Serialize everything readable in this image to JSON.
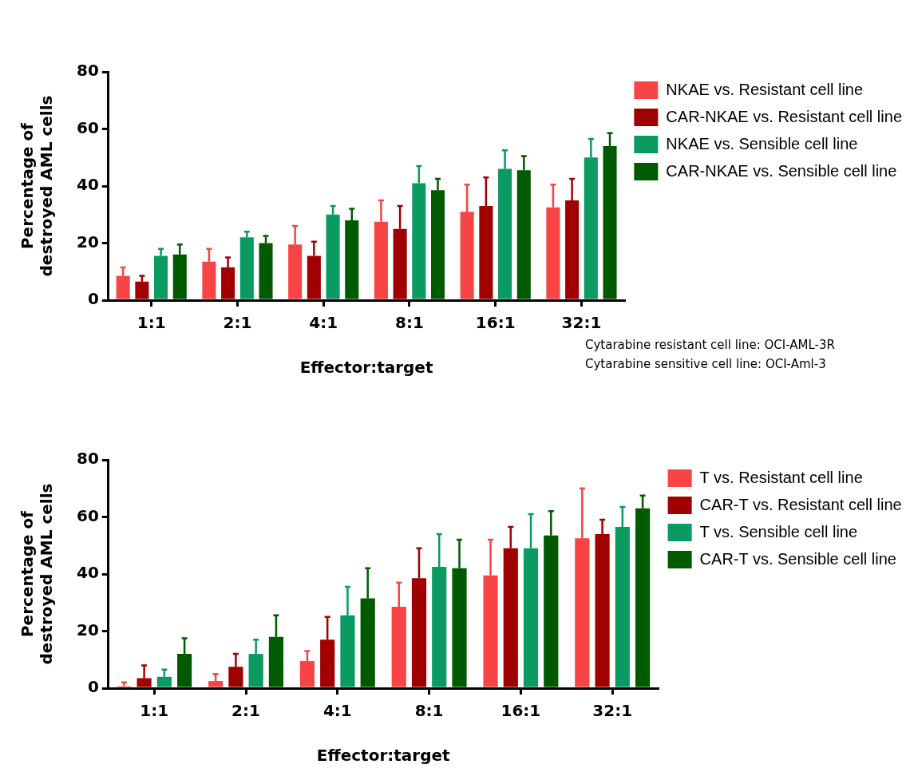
{
  "chart_data": [
    {
      "type": "bar",
      "xlabel": "Effector:target",
      "ylabel": "Percentage of destroyed AML cells",
      "categories": [
        "1:1",
        "2:1",
        "4:1",
        "8:1",
        "16:1",
        "32:1"
      ],
      "ylim": [
        0,
        80
      ],
      "yticks": [
        0,
        20,
        40,
        60,
        80
      ],
      "grid": false,
      "legend": "right",
      "annotations": [
        "Cytarabine resistant cell line: OCI-AML-3R",
        "Cytarabine sensitive cell line: OCI-Aml-3"
      ],
      "series": [
        {
          "name": "NKAE vs. Resistant cell line",
          "color": "#f84444",
          "values": [
            8.5,
            13.5,
            19.5,
            27.5,
            31,
            32.5
          ],
          "errors": [
            [
              8.5,
              11.5
            ],
            [
              13.5,
              18
            ],
            [
              19.5,
              26
            ],
            [
              27.5,
              35
            ],
            [
              31,
              40.5
            ],
            [
              32.5,
              40.5
            ]
          ]
        },
        {
          "name": "CAR-NKAE vs. Resistant cell line",
          "color": "#a00000",
          "values": [
            6.5,
            11.5,
            15.5,
            25,
            33,
            35
          ],
          "errors": [
            [
              6.5,
              8.5
            ],
            [
              11.5,
              15
            ],
            [
              15.5,
              20.5
            ],
            [
              25,
              33
            ],
            [
              33,
              43
            ],
            [
              35,
              42.5
            ]
          ]
        },
        {
          "name": "NKAE vs. Sensible cell line",
          "color": "#0a9a62",
          "values": [
            15.5,
            22,
            30,
            41,
            46,
            50
          ],
          "errors": [
            [
              15.5,
              18
            ],
            [
              22,
              24
            ],
            [
              30,
              33
            ],
            [
              41,
              47
            ],
            [
              46,
              52.5
            ],
            [
              50,
              56.5
            ]
          ]
        },
        {
          "name": "CAR-NKAE vs. Sensible cell line",
          "color": "#005a00",
          "values": [
            16,
            20,
            28,
            38.5,
            45.5,
            54
          ],
          "errors": [
            [
              16,
              19.5
            ],
            [
              20,
              22.5
            ],
            [
              28,
              32
            ],
            [
              38.5,
              42.5
            ],
            [
              45.5,
              50.5
            ],
            [
              54,
              58.5
            ]
          ]
        }
      ]
    },
    {
      "type": "bar",
      "xlabel": "Effector:target",
      "ylabel": "Percentage of destroyed AML cells",
      "categories": [
        "1:1",
        "2:1",
        "4:1",
        "8:1",
        "16:1",
        "32:1"
      ],
      "ylim": [
        0,
        80
      ],
      "yticks": [
        0,
        20,
        40,
        60,
        80
      ],
      "grid": false,
      "legend": "right",
      "series": [
        {
          "name": "T vs. Resistant cell line",
          "color": "#f84444",
          "values": [
            0.7,
            2.5,
            9.5,
            28.5,
            39.5,
            52.5
          ],
          "errors": [
            [
              0.7,
              2
            ],
            [
              2.5,
              5
            ],
            [
              9.5,
              13
            ],
            [
              28.5,
              37
            ],
            [
              39.5,
              52
            ],
            [
              52.5,
              70
            ]
          ]
        },
        {
          "name": "CAR-T vs. Resistant cell line",
          "color": "#a00000",
          "values": [
            3.5,
            7.5,
            17,
            38.5,
            49,
            54
          ],
          "errors": [
            [
              3.5,
              8
            ],
            [
              7.5,
              12
            ],
            [
              17,
              25
            ],
            [
              38.5,
              49
            ],
            [
              49,
              56.5
            ],
            [
              54,
              59
            ]
          ]
        },
        {
          "name": "T vs. Sensible cell line",
          "color": "#0a9a62",
          "values": [
            4,
            12,
            25.5,
            42.5,
            49,
            56.5
          ],
          "errors": [
            [
              4,
              6.5
            ],
            [
              12,
              17
            ],
            [
              25.5,
              35.5
            ],
            [
              42.5,
              54
            ],
            [
              49,
              61
            ],
            [
              56.5,
              63.5
            ]
          ]
        },
        {
          "name": "CAR-T vs. Sensible cell line",
          "color": "#005a00",
          "values": [
            12,
            18,
            31.5,
            42,
            53.5,
            63
          ],
          "errors": [
            [
              12,
              17.5
            ],
            [
              18,
              25.5
            ],
            [
              31.5,
              42
            ],
            [
              42,
              52
            ],
            [
              53.5,
              62
            ],
            [
              63,
              67.5
            ]
          ]
        }
      ]
    }
  ]
}
